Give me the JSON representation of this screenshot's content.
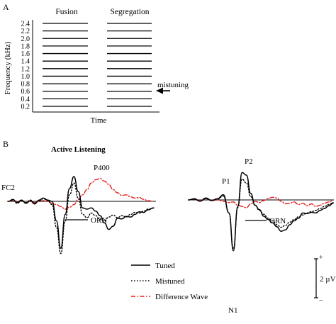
{
  "panel_a": {
    "letter": "A",
    "conditions": [
      "Fusion",
      "Segregation"
    ],
    "ylabel": "Frequency (kHz)",
    "xlabel": "Time",
    "yticks": [
      "2.4",
      "2.2",
      "2.0",
      "1.8",
      "1.6",
      "1.4",
      "1.2",
      "1.0",
      "0.8",
      "0.6",
      "0.4",
      "0.2"
    ],
    "annotation": "mistuning"
  },
  "panel_b": {
    "letter": "B",
    "title": "Active Listening",
    "site_label": "FC2",
    "peaks": {
      "p400": "P400",
      "p1": "P1",
      "p2": "P2",
      "n1": "N1"
    },
    "orn_label": "ORN",
    "legend": [
      {
        "key": "tuned",
        "label": "Tuned",
        "style": "solid",
        "color": "#000000"
      },
      {
        "key": "mistuned",
        "label": "Mistuned",
        "style": "dotted",
        "color": "#000000"
      },
      {
        "key": "difference",
        "label": "Difference Wave",
        "style": "dashdot",
        "color": "#e0201b"
      }
    ],
    "scale": {
      "plus": "+",
      "minus": "−",
      "label": "2 µV"
    }
  },
  "chart_data": [
    {
      "type": "line",
      "title": "",
      "xlabel": "Time",
      "ylabel": "Frequency (kHz)",
      "ylim": [
        0.1,
        2.5
      ],
      "series": [
        {
          "name": "Fusion",
          "values": [
            0.2,
            0.4,
            0.6,
            0.8,
            1.0,
            1.2,
            1.4,
            1.6,
            1.8,
            2.0,
            2.2,
            2.4
          ]
        },
        {
          "name": "Segregation",
          "values": [
            0.2,
            0.4,
            0.6,
            0.8,
            1.0,
            1.2,
            1.4,
            1.6,
            1.8,
            2.0,
            2.2,
            2.4
          ]
        }
      ],
      "annotations": [
        {
          "text": "mistuning",
          "target_kHz": 0.6,
          "condition": "Segregation"
        }
      ]
    },
    {
      "type": "line",
      "title": "Active Listening",
      "xlabel": "",
      "ylabel": "",
      "ylim": [
        -8,
        5
      ],
      "t_range": [
        0,
        100
      ],
      "series": [
        {
          "name": "Tuned",
          "style": "solid",
          "color": "#000000",
          "x": [
            0,
            3,
            6,
            9,
            12,
            15,
            18,
            21,
            24,
            27,
            30,
            33,
            36,
            39,
            42,
            45,
            48,
            51,
            54,
            57,
            60,
            63,
            66,
            69,
            72,
            75,
            78,
            81,
            84,
            87,
            90,
            93,
            96,
            100
          ],
          "y": [
            0,
            0.3,
            -0.2,
            0.2,
            -0.3,
            0.1,
            -0.4,
            0.2,
            0.5,
            0.2,
            0,
            -3,
            -7.2,
            -2,
            2,
            3.8,
            1.5,
            -1,
            -1.2,
            -1,
            -1.5,
            -2.2,
            -3.3,
            -4.3,
            -3.8,
            -2.6,
            -2.7,
            -2.3,
            -2.4,
            -2,
            -1.6,
            -1.7,
            -1.3,
            -1
          ]
        },
        {
          "name": "Mistuned",
          "style": "dotted",
          "color": "#000000",
          "x": [
            0,
            3,
            6,
            9,
            12,
            15,
            18,
            21,
            24,
            27,
            30,
            33,
            36,
            39,
            42,
            45,
            48,
            51,
            54,
            57,
            60,
            63,
            66,
            69,
            72,
            75,
            78,
            81,
            84,
            87,
            90,
            93,
            96,
            100
          ],
          "y": [
            0,
            0.2,
            -0.3,
            0.1,
            -0.2,
            0.2,
            -0.3,
            0.1,
            0.4,
            0.1,
            -0.5,
            -4,
            -8,
            -3,
            1,
            2.8,
            0.5,
            -2,
            -2.5,
            -1.8,
            -2.2,
            -2.8,
            -3,
            -2.4,
            -2.1,
            -2.5,
            -2.2,
            -2.4,
            -2,
            -1.7,
            -1.8,
            -1.5,
            -1.2,
            -1
          ]
        },
        {
          "name": "Difference Wave",
          "style": "dashdot",
          "color": "#e0201b",
          "x": [
            0,
            3,
            6,
            9,
            12,
            15,
            18,
            21,
            24,
            27,
            30,
            33,
            36,
            39,
            42,
            45,
            48,
            51,
            54,
            57,
            60,
            63,
            66,
            69,
            72,
            75,
            78,
            81,
            84,
            87,
            90,
            93,
            96,
            100
          ],
          "y": [
            0,
            0.1,
            -0.1,
            0.2,
            -0.3,
            0,
            -0.2,
            0.1,
            0.1,
            0,
            -0.3,
            -0.5,
            -0.8,
            -1.2,
            -0.9,
            -0.5,
            0.3,
            1,
            1.8,
            2.8,
            3.3,
            3.5,
            3.1,
            2.6,
            1.8,
            1.3,
            0.9,
            1,
            0.7,
            0.5,
            0.6,
            0.3,
            0.1,
            0
          ]
        }
      ]
    },
    {
      "type": "line",
      "title": "",
      "xlabel": "",
      "ylabel": "",
      "ylim": [
        -8,
        5
      ],
      "t_range": [
        0,
        100
      ],
      "series": [
        {
          "name": "Tuned",
          "style": "solid",
          "color": "#000000",
          "x": [
            0,
            4,
            8,
            12,
            16,
            20,
            24,
            28,
            31,
            34,
            37,
            40,
            43,
            46,
            49,
            52,
            55,
            58,
            61,
            64,
            67,
            70,
            73,
            76,
            79,
            82,
            85,
            88,
            91,
            94,
            97,
            100
          ],
          "y": [
            0,
            0.2,
            -0.2,
            0.3,
            -0.1,
            0.2,
            0.8,
            -2,
            -7.8,
            -1,
            4.2,
            3.8,
            1,
            -0.8,
            -1.5,
            -2.5,
            -3,
            -3.5,
            -4.1,
            -4.8,
            -4.6,
            -3.8,
            -3.2,
            -2.8,
            -2,
            -2.1,
            -1.9,
            -2,
            -1.6,
            -1.3,
            -0.9,
            -0.5
          ]
        },
        {
          "name": "Mistuned",
          "style": "dotted",
          "color": "#000000",
          "x": [
            0,
            4,
            8,
            12,
            16,
            20,
            24,
            28,
            31,
            34,
            37,
            40,
            43,
            46,
            49,
            52,
            55,
            58,
            61,
            64,
            67,
            70,
            73,
            76,
            79,
            82,
            85,
            88,
            91,
            94,
            97,
            100
          ],
          "y": [
            0,
            0.1,
            -0.2,
            0.2,
            -0.1,
            0.1,
            0.6,
            -2,
            -7.5,
            -1.2,
            3.2,
            2.6,
            0.5,
            -0.8,
            -1.6,
            -2.2,
            -2.8,
            -3.2,
            -3.8,
            -4.2,
            -3.9,
            -3.4,
            -3,
            -2.6,
            -2.3,
            -2,
            -1.8,
            -1.6,
            -1.3,
            -1,
            -0.7,
            -0.4
          ]
        },
        {
          "name": "Difference Wave",
          "style": "dashdot",
          "color": "#e0201b",
          "x": [
            0,
            4,
            8,
            12,
            16,
            20,
            24,
            28,
            31,
            34,
            37,
            40,
            43,
            46,
            49,
            52,
            55,
            58,
            61,
            64,
            67,
            70,
            73,
            76,
            79,
            82,
            85,
            88,
            91,
            94,
            97,
            100
          ],
          "y": [
            0,
            0.1,
            -0.1,
            0.2,
            -0.1,
            0,
            -0.2,
            -0.4,
            -0.3,
            -0.8,
            -1,
            -1.2,
            -0.6,
            -0.2,
            -0.4,
            -0.1,
            0.2,
            0.4,
            0.3,
            -0.2,
            -0.6,
            -0.5,
            -0.3,
            -0.7,
            -0.5,
            -0.9,
            -0.6,
            -1,
            -0.8,
            -0.5,
            -0.3,
            -0.1
          ]
        }
      ]
    }
  ]
}
